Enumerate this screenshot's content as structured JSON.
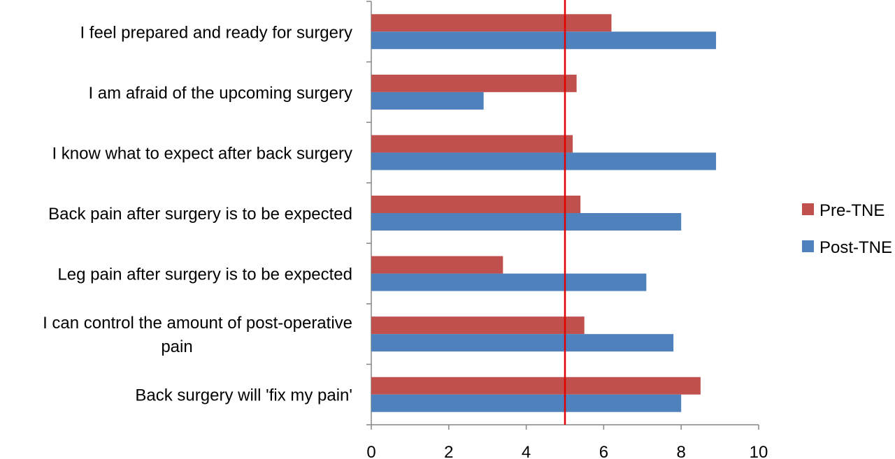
{
  "chart_data": {
    "type": "bar",
    "orientation": "horizontal",
    "categories": [
      [
        "I feel prepared and ready for surgery"
      ],
      [
        "I am afraid of the upcoming surgery"
      ],
      [
        "I know what to expect after back surgery"
      ],
      [
        "Back pain after surgery is to be expected"
      ],
      [
        "Leg pain after surgery is to be expected"
      ],
      [
        "I can control the amount of post-operative",
        "pain"
      ],
      [
        "Back surgery will 'fix my pain'"
      ]
    ],
    "series": [
      {
        "name": "Pre-TNE",
        "color": "#c0504d",
        "values": [
          6.2,
          5.3,
          5.2,
          5.4,
          3.4,
          5.5,
          8.5
        ]
      },
      {
        "name": "Post-TNE",
        "color": "#4f81bd",
        "values": [
          8.9,
          2.9,
          8.9,
          8.0,
          7.1,
          7.8,
          8.0
        ]
      }
    ],
    "xlim": [
      0,
      10
    ],
    "xticks": [
      "0",
      "2",
      "4",
      "6",
      "8",
      "10"
    ],
    "reference_line": {
      "x": 5,
      "color": "#e00000"
    },
    "legend_position": "right",
    "grid": false,
    "title": "",
    "xlabel": "",
    "ylabel": ""
  }
}
